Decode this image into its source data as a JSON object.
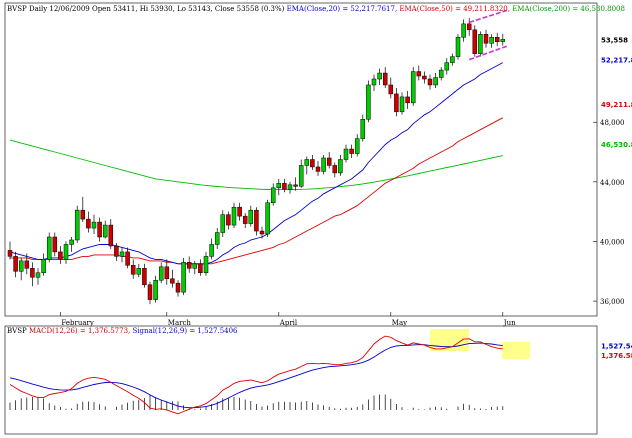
{
  "header": {
    "symbol": "BVSP",
    "info": "Daily 12/06/2009 Open 53411, Hi 53930, Lo 53143, Close 53558 (0.3%)",
    "ema20": "EMA(Close,20) = 52,217.7617,",
    "ema50": "EMA(Close,50) = 49,211.8320,",
    "ema200": "EMA(Close,200) = 46,530.8008"
  },
  "macd_header": {
    "symbol": "BVSP",
    "macd": "MACD(12,26) = 1,376.5773,",
    "signal": "Signal(12,26,9) = 1,527.5406"
  },
  "colors": {
    "up": "#00cc00",
    "down": "#cc0000",
    "ema20": "#0000cc",
    "ema50": "#dd0000",
    "ema200": "#00bb00",
    "highlight": "#ffff66",
    "trend": "#cc33cc"
  },
  "chart_data": [
    {
      "type": "candlestick",
      "ylim": [
        35000,
        56000
      ],
      "ytick_values": [
        36000,
        40000,
        44000,
        48000
      ],
      "ytick_labels": [
        "36,000",
        "40,000",
        "44,000",
        "48,000"
      ],
      "xtick_labels": [
        "February",
        "March",
        "April",
        "May",
        "Jun"
      ],
      "xtick_index": [
        9,
        28,
        48,
        68,
        88
      ],
      "price_labels": [
        "53,558",
        "52,217.8",
        "49,211.8",
        "46,530.8"
      ],
      "price_label_values": [
        53558,
        52218,
        49212,
        46531
      ],
      "candles": [
        {
          "o": 39400,
          "h": 40000,
          "l": 38800,
          "c": 39000
        },
        {
          "o": 39000,
          "h": 39300,
          "l": 37600,
          "c": 38000
        },
        {
          "o": 38000,
          "h": 38900,
          "l": 37400,
          "c": 38700
        },
        {
          "o": 38700,
          "h": 39200,
          "l": 37800,
          "c": 38200
        },
        {
          "o": 38200,
          "h": 38600,
          "l": 37000,
          "c": 37600
        },
        {
          "o": 37600,
          "h": 38200,
          "l": 37100,
          "c": 37900
        },
        {
          "o": 37900,
          "h": 39200,
          "l": 37700,
          "c": 38800
        },
        {
          "o": 38800,
          "h": 40600,
          "l": 38600,
          "c": 40300
        },
        {
          "o": 40300,
          "h": 40600,
          "l": 39000,
          "c": 39300
        },
        {
          "o": 39300,
          "h": 39700,
          "l": 38500,
          "c": 38800
        },
        {
          "o": 38800,
          "h": 40000,
          "l": 38500,
          "c": 39800
        },
        {
          "o": 39800,
          "h": 40300,
          "l": 39300,
          "c": 40100
        },
        {
          "o": 40100,
          "h": 42400,
          "l": 39900,
          "c": 42100
        },
        {
          "o": 42100,
          "h": 43000,
          "l": 41300,
          "c": 41500
        },
        {
          "o": 41500,
          "h": 42000,
          "l": 40600,
          "c": 40900
        },
        {
          "o": 40900,
          "h": 41800,
          "l": 40500,
          "c": 41300
        },
        {
          "o": 41300,
          "h": 41600,
          "l": 40000,
          "c": 40300
        },
        {
          "o": 40300,
          "h": 41400,
          "l": 40200,
          "c": 41100
        },
        {
          "o": 41100,
          "h": 41500,
          "l": 39500,
          "c": 39700
        },
        {
          "o": 39700,
          "h": 39900,
          "l": 38700,
          "c": 39000
        },
        {
          "o": 39000,
          "h": 39600,
          "l": 38600,
          "c": 39300
        },
        {
          "o": 39300,
          "h": 39600,
          "l": 38200,
          "c": 38400
        },
        {
          "o": 38400,
          "h": 38800,
          "l": 37500,
          "c": 37800
        },
        {
          "o": 37800,
          "h": 38500,
          "l": 37600,
          "c": 38200
        },
        {
          "o": 38200,
          "h": 38500,
          "l": 36900,
          "c": 37100
        },
        {
          "o": 37100,
          "h": 37300,
          "l": 35800,
          "c": 36100
        },
        {
          "o": 36100,
          "h": 37700,
          "l": 35900,
          "c": 37400
        },
        {
          "o": 37400,
          "h": 38600,
          "l": 37200,
          "c": 38300
        },
        {
          "o": 38300,
          "h": 38800,
          "l": 37100,
          "c": 37500
        },
        {
          "o": 37500,
          "h": 38100,
          "l": 36900,
          "c": 37200
        },
        {
          "o": 37200,
          "h": 37400,
          "l": 36300,
          "c": 36600
        },
        {
          "o": 36600,
          "h": 38900,
          "l": 36400,
          "c": 38600
        },
        {
          "o": 38600,
          "h": 39000,
          "l": 37900,
          "c": 38200
        },
        {
          "o": 38200,
          "h": 38700,
          "l": 37800,
          "c": 38500
        },
        {
          "o": 38500,
          "h": 38800,
          "l": 37700,
          "c": 37900
        },
        {
          "o": 37900,
          "h": 39300,
          "l": 37700,
          "c": 39000
        },
        {
          "o": 39000,
          "h": 40200,
          "l": 38800,
          "c": 39800
        },
        {
          "o": 39800,
          "h": 40900,
          "l": 39500,
          "c": 40600
        },
        {
          "o": 40600,
          "h": 42100,
          "l": 40300,
          "c": 41800
        },
        {
          "o": 41800,
          "h": 42000,
          "l": 40800,
          "c": 41100
        },
        {
          "o": 41100,
          "h": 42600,
          "l": 40900,
          "c": 42300
        },
        {
          "o": 42300,
          "h": 42600,
          "l": 41400,
          "c": 41700
        },
        {
          "o": 41700,
          "h": 41900,
          "l": 40900,
          "c": 41200
        },
        {
          "o": 41200,
          "h": 42400,
          "l": 41000,
          "c": 42100
        },
        {
          "o": 42100,
          "h": 42300,
          "l": 40400,
          "c": 40700
        },
        {
          "o": 40700,
          "h": 41000,
          "l": 40200,
          "c": 40500
        },
        {
          "o": 40500,
          "h": 42800,
          "l": 40300,
          "c": 42600
        },
        {
          "o": 42600,
          "h": 43900,
          "l": 42400,
          "c": 43600
        },
        {
          "o": 43600,
          "h": 44200,
          "l": 43100,
          "c": 43900
        },
        {
          "o": 43900,
          "h": 44200,
          "l": 43300,
          "c": 43500
        },
        {
          "o": 43500,
          "h": 44000,
          "l": 43200,
          "c": 43800
        },
        {
          "o": 43800,
          "h": 44300,
          "l": 43400,
          "c": 43700
        },
        {
          "o": 43700,
          "h": 45500,
          "l": 43600,
          "c": 45100
        },
        {
          "o": 45100,
          "h": 45700,
          "l": 44500,
          "c": 45500
        },
        {
          "o": 45500,
          "h": 45800,
          "l": 44800,
          "c": 45000
        },
        {
          "o": 45000,
          "h": 45400,
          "l": 44400,
          "c": 44700
        },
        {
          "o": 44700,
          "h": 45800,
          "l": 44500,
          "c": 45600
        },
        {
          "o": 45600,
          "h": 46000,
          "l": 44900,
          "c": 45100
        },
        {
          "o": 45100,
          "h": 45300,
          "l": 44300,
          "c": 44600
        },
        {
          "o": 44600,
          "h": 45800,
          "l": 44400,
          "c": 45500
        },
        {
          "o": 45500,
          "h": 46500,
          "l": 45300,
          "c": 46200
        },
        {
          "o": 46200,
          "h": 46500,
          "l": 45600,
          "c": 45900
        },
        {
          "o": 45900,
          "h": 47200,
          "l": 45700,
          "c": 46900
        },
        {
          "o": 46900,
          "h": 48500,
          "l": 46700,
          "c": 48200
        },
        {
          "o": 48200,
          "h": 50800,
          "l": 48000,
          "c": 50500
        },
        {
          "o": 50500,
          "h": 51200,
          "l": 50100,
          "c": 50900
        },
        {
          "o": 50900,
          "h": 51600,
          "l": 50500,
          "c": 51300
        },
        {
          "o": 51300,
          "h": 51700,
          "l": 50300,
          "c": 50500
        },
        {
          "o": 50500,
          "h": 51000,
          "l": 49600,
          "c": 49900
        },
        {
          "o": 49900,
          "h": 50300,
          "l": 48400,
          "c": 48700
        },
        {
          "o": 48700,
          "h": 50000,
          "l": 48500,
          "c": 49700
        },
        {
          "o": 49700,
          "h": 50100,
          "l": 48900,
          "c": 49300
        },
        {
          "o": 49300,
          "h": 51700,
          "l": 49100,
          "c": 51400
        },
        {
          "o": 51400,
          "h": 51800,
          "l": 50800,
          "c": 51100
        },
        {
          "o": 51100,
          "h": 51400,
          "l": 50600,
          "c": 50900
        },
        {
          "o": 50900,
          "h": 51200,
          "l": 50200,
          "c": 50500
        },
        {
          "o": 50500,
          "h": 51300,
          "l": 50300,
          "c": 51000
        },
        {
          "o": 51000,
          "h": 51700,
          "l": 50800,
          "c": 51500
        },
        {
          "o": 51500,
          "h": 52300,
          "l": 51200,
          "c": 52000
        },
        {
          "o": 52000,
          "h": 52600,
          "l": 51800,
          "c": 52400
        },
        {
          "o": 52400,
          "h": 53900,
          "l": 52200,
          "c": 53700
        },
        {
          "o": 53700,
          "h": 54900,
          "l": 53400,
          "c": 54600
        },
        {
          "o": 54600,
          "h": 55000,
          "l": 53800,
          "c": 54200
        },
        {
          "o": 54200,
          "h": 54500,
          "l": 52400,
          "c": 52600
        },
        {
          "o": 52600,
          "h": 54100,
          "l": 52400,
          "c": 53900
        },
        {
          "o": 53900,
          "h": 54200,
          "l": 53000,
          "c": 53300
        },
        {
          "o": 53300,
          "h": 53900,
          "l": 53000,
          "c": 53700
        },
        {
          "o": 53700,
          "h": 54000,
          "l": 53100,
          "c": 53400
        },
        {
          "o": 53411,
          "h": 53930,
          "l": 53143,
          "c": 53558
        }
      ],
      "ema20": [
        39300,
        39200,
        39100,
        39000,
        38900,
        38800,
        38800,
        38900,
        38900,
        38900,
        39000,
        39100,
        39300,
        39500,
        39600,
        39700,
        39800,
        39800,
        39800,
        39700,
        39600,
        39500,
        39400,
        39300,
        39100,
        38900,
        38800,
        38800,
        38700,
        38600,
        38500,
        38500,
        38500,
        38500,
        38500,
        38500,
        38600,
        38800,
        39100,
        39300,
        39600,
        39800,
        39900,
        40100,
        40200,
        40300,
        40500,
        40800,
        41100,
        41400,
        41600,
        41800,
        42100,
        42400,
        42700,
        42900,
        43200,
        43400,
        43600,
        43800,
        44000,
        44200,
        44500,
        44800,
        45300,
        45700,
        46100,
        46500,
        46800,
        47000,
        47300,
        47500,
        47900,
        48200,
        48500,
        48700,
        49000,
        49300,
        49600,
        49900,
        50200,
        50500,
        50700,
        50900,
        51200,
        51400,
        51600,
        51800,
        52000
      ],
      "ema50": [
        38900,
        38900,
        38900,
        38900,
        38800,
        38800,
        38800,
        38800,
        38800,
        38800,
        38800,
        38800,
        38900,
        39000,
        39000,
        39100,
        39100,
        39100,
        39100,
        39100,
        39000,
        39000,
        38900,
        38900,
        38800,
        38700,
        38700,
        38700,
        38600,
        38600,
        38500,
        38500,
        38500,
        38500,
        38500,
        38500,
        38500,
        38600,
        38700,
        38800,
        38900,
        39000,
        39100,
        39200,
        39300,
        39400,
        39500,
        39600,
        39800,
        39900,
        40100,
        40300,
        40500,
        40700,
        40900,
        41100,
        41300,
        41500,
        41700,
        41800,
        42000,
        42200,
        42400,
        42700,
        43000,
        43300,
        43600,
        43900,
        44100,
        44300,
        44500,
        44700,
        44900,
        45200,
        45400,
        45600,
        45800,
        46000,
        46200,
        46400,
        46700,
        46900,
        47100,
        47300,
        47500,
        47700,
        47900,
        48100,
        48300
      ],
      "ema200": [
        46800,
        46700,
        46600,
        46500,
        46400,
        46300,
        46200,
        46100,
        46000,
        45900,
        45800,
        45700,
        45600,
        45500,
        45400,
        45300,
        45200,
        45100,
        45000,
        44900,
        44800,
        44700,
        44600,
        44500,
        44400,
        44300,
        44200,
        44150,
        44100,
        44050,
        44000,
        43950,
        43900,
        43850,
        43800,
        43760,
        43720,
        43690,
        43660,
        43630,
        43600,
        43580,
        43560,
        43540,
        43520,
        43500,
        43490,
        43480,
        43480,
        43480,
        43480,
        43490,
        43500,
        43510,
        43530,
        43550,
        43580,
        43610,
        43640,
        43680,
        43720,
        43760,
        43810,
        43860,
        43920,
        43980,
        44050,
        44120,
        44190,
        44260,
        44330,
        44400,
        44480,
        44560,
        44640,
        44720,
        44800,
        44880,
        44960,
        45040,
        45120,
        45200,
        45280,
        45360,
        45440,
        45520,
        45600,
        45680,
        45760
      ]
    },
    {
      "type": "line",
      "series_desc": "MACD(12,26) and Signal(12,26,9) with histogram",
      "ylim": [
        -2400,
        2400
      ],
      "price_labels": [
        "1,527.54",
        "1,376.58"
      ],
      "price_label_values": [
        1527,
        1376
      ],
      "macd": [
        -200,
        -350,
        -500,
        -600,
        -700,
        -780,
        -780,
        -650,
        -600,
        -560,
        -500,
        -380,
        -150,
        0,
        80,
        120,
        80,
        30,
        -100,
        -250,
        -380,
        -520,
        -680,
        -820,
        -1000,
        -1250,
        -1300,
        -1280,
        -1330,
        -1420,
        -1500,
        -1400,
        -1300,
        -1200,
        -1150,
        -1050,
        -880,
        -700,
        -450,
        -320,
        -150,
        -60,
        -30,
        0,
        -60,
        -120,
        -40,
        120,
        260,
        340,
        420,
        480,
        600,
        720,
        740,
        720,
        740,
        720,
        680,
        680,
        740,
        770,
        840,
        1000,
        1300,
        1600,
        1800,
        1950,
        1900,
        1750,
        1650,
        1550,
        1650,
        1600,
        1550,
        1450,
        1380,
        1380,
        1430,
        1480,
        1650,
        1820,
        1830,
        1700,
        1700,
        1580,
        1480,
        1420,
        1380
      ],
      "signal": [
        100,
        40,
        -30,
        -100,
        -180,
        -250,
        -320,
        -380,
        -420,
        -440,
        -450,
        -440,
        -400,
        -330,
        -260,
        -200,
        -150,
        -110,
        -100,
        -120,
        -160,
        -230,
        -310,
        -410,
        -520,
        -660,
        -790,
        -890,
        -980,
        -1070,
        -1160,
        -1210,
        -1230,
        -1230,
        -1210,
        -1180,
        -1120,
        -1040,
        -920,
        -800,
        -670,
        -550,
        -450,
        -360,
        -300,
        -260,
        -220,
        -150,
        -70,
        10,
        100,
        180,
        270,
        360,
        440,
        500,
        550,
        590,
        610,
        630,
        650,
        680,
        720,
        780,
        880,
        1020,
        1180,
        1330,
        1450,
        1510,
        1540,
        1540,
        1560,
        1570,
        1570,
        1540,
        1510,
        1490,
        1480,
        1480,
        1510,
        1570,
        1620,
        1630,
        1640,
        1620,
        1600,
        1560,
        1530
      ]
    }
  ]
}
